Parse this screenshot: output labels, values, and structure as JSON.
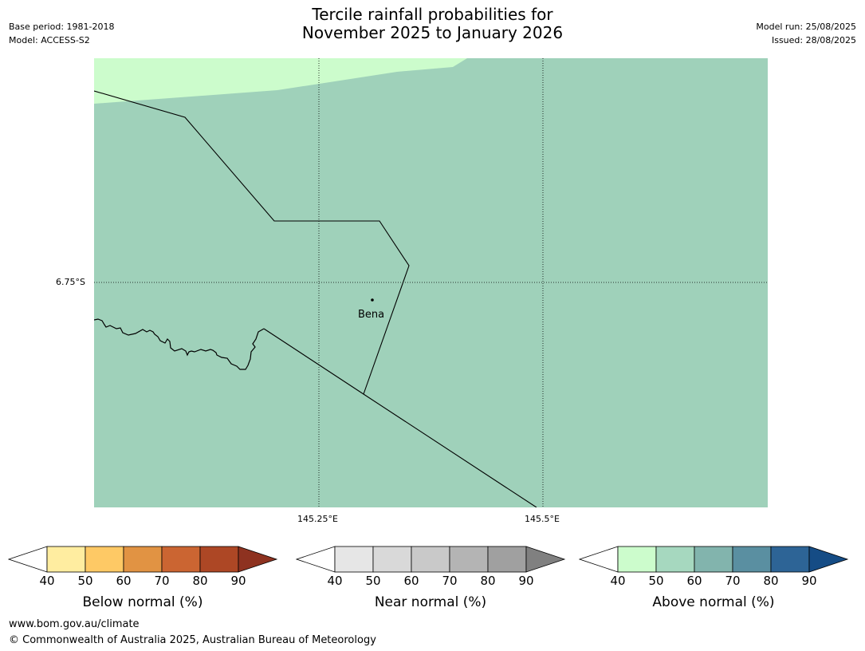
{
  "header": {
    "title_line1": "Tercile rainfall probabilities for",
    "title_line2": "November 2025 to January 2026",
    "base_period": "Base period: 1981-2018",
    "model": "Model: ACCESS-S2",
    "model_run": "Model run: 25/08/2025",
    "issued": "Issued: 28/08/2025"
  },
  "map": {
    "lat_label": "6.75°S",
    "lon_labels": [
      "145.25°E",
      "145.5°E"
    ],
    "place_label": "Bena",
    "colors": {
      "above_40_50": "#ccfccc",
      "above_50_60": "#9fd1ba",
      "border": "#000000"
    }
  },
  "colorbars": [
    {
      "title": "Below normal (%)",
      "ticks": [
        "40",
        "50",
        "60",
        "70",
        "80",
        "90"
      ],
      "colors": [
        "#ffffff",
        "#ffeda0",
        "#fec965",
        "#e19343",
        "#cb6532",
        "#ad4725",
        "#8e3220"
      ]
    },
    {
      "title": "Near normal (%)",
      "ticks": [
        "40",
        "50",
        "60",
        "70",
        "80",
        "90"
      ],
      "colors": [
        "#ffffff",
        "#e6e6e6",
        "#d9d9d9",
        "#c9c9c9",
        "#b4b4b4",
        "#a0a0a0",
        "#808080"
      ]
    },
    {
      "title": "Above normal (%)",
      "ticks": [
        "40",
        "50",
        "60",
        "70",
        "80",
        "90"
      ],
      "colors": [
        "#ffffff",
        "#ccfccc",
        "#a6d8bf",
        "#82b4ad",
        "#5a8fa1",
        "#2d6496",
        "#154c85"
      ]
    }
  ],
  "footer": {
    "url": "www.bom.gov.au/climate",
    "copyright": "© Commonwealth of Australia 2025, Australian Bureau of Meteorology"
  }
}
